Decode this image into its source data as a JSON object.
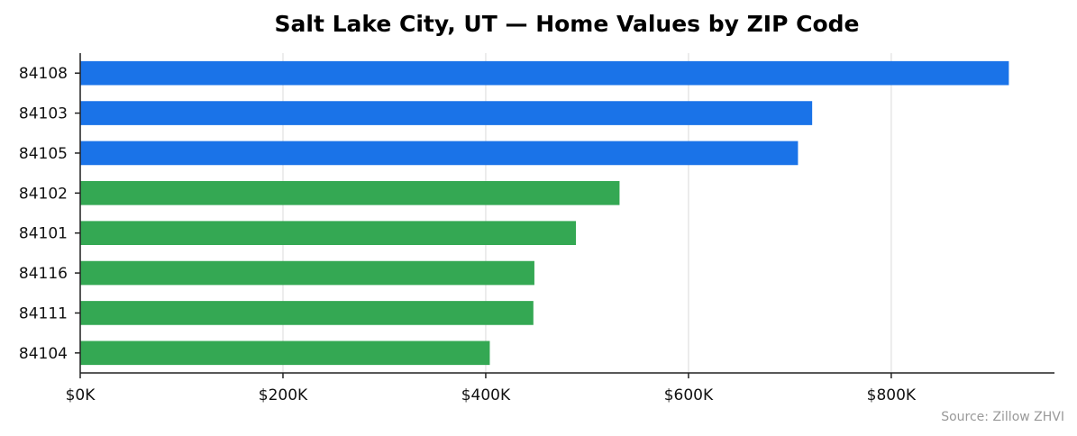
{
  "chart_data": {
    "type": "bar",
    "orientation": "horizontal",
    "title": "Salt Lake City, UT — Home Values by ZIP Code",
    "xlabel": "",
    "ylabel": "",
    "categories": [
      "84108",
      "84103",
      "84105",
      "84102",
      "84101",
      "84116",
      "84111",
      "84104"
    ],
    "values": [
      916000,
      722000,
      708000,
      532000,
      489000,
      448000,
      447000,
      404000
    ],
    "bar_colors": [
      "#1a73e8",
      "#1a73e8",
      "#1a73e8",
      "#34a853",
      "#34a853",
      "#34a853",
      "#34a853",
      "#34a853"
    ],
    "xlim": [
      0,
      961000
    ],
    "x_ticks": [
      0,
      200000,
      400000,
      600000,
      800000
    ],
    "x_tick_labels": [
      "$0K",
      "$200K",
      "$400K",
      "$600K",
      "$800K"
    ],
    "grid": "vertical",
    "source_note": "Source: Zillow ZHVI"
  }
}
